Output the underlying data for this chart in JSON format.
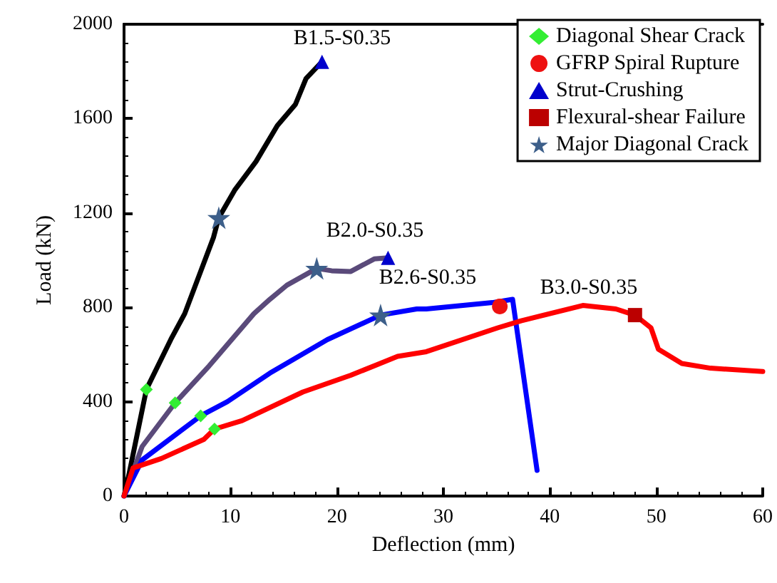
{
  "chart_data": {
    "type": "line",
    "xlabel": "Deflection (mm)",
    "ylabel": "Load (kN)",
    "xlim": [
      0,
      60
    ],
    "xticks": [
      0,
      10,
      20,
      30,
      40,
      50,
      60
    ],
    "ylim": [
      0,
      2000
    ],
    "yticks": [
      0,
      400,
      800,
      1200,
      1600,
      2000
    ],
    "grid": false,
    "legend": "top right",
    "line_style": "solid",
    "marker": "none",
    "series": [
      {
        "color": "#000000",
        "x": [
          0,
          0.5,
          2.1,
          4.4,
          5.7,
          8.4,
          8.9,
          10.4,
          12.4,
          14.4,
          16.1,
          17.1,
          18.6
        ],
        "values": [
          0,
          100,
          452,
          664,
          773,
          1096,
          1180,
          1297,
          1418,
          1570,
          1660,
          1770,
          1841
        ]
      },
      {
        "color": "#5a4a7a",
        "x": [
          0,
          1.7,
          4.8,
          8,
          12.2,
          13.7,
          15.3,
          18.1,
          19.5,
          21.3,
          23.5,
          24.8
        ],
        "values": [
          0,
          210,
          395,
          552,
          773,
          834,
          894,
          965,
          955,
          952,
          1005,
          1010
        ]
      },
      {
        "color": "#0000ff",
        "x": [
          0,
          1.7,
          7.2,
          9.7,
          13.7,
          19.1,
          24.1,
          27.5,
          28.4,
          34.6,
          36.5,
          38.8
        ],
        "values": [
          0,
          153,
          340,
          400,
          521,
          663,
          767,
          793,
          793,
          820,
          834,
          109
        ]
      },
      {
        "color": "#ff0000",
        "x": [
          0,
          0.85,
          3.5,
          7.5,
          8.5,
          11.1,
          16.8,
          21.3,
          25.7,
          28.4,
          35.1,
          37.3,
          43.1,
          46.2,
          48,
          49.5,
          50.2,
          52.4,
          55.1,
          60
        ],
        "values": [
          0,
          119,
          159,
          240,
          284,
          320,
          441,
          512,
          592,
          612,
          713,
          743,
          808,
          793,
          767,
          713,
          622,
          562,
          542,
          528
        ]
      },
      {
        "type": "scatter",
        "name": "Diagonal Shear Crack",
        "marker": "diamond",
        "color": "#33ee33",
        "x": [
          2.1,
          4.8,
          7.2,
          8.5
        ],
        "values": [
          452,
          395,
          340,
          284
        ]
      },
      {
        "type": "scatter",
        "name": "GFRP Spiral Rupture",
        "marker": "circle",
        "color": "#ee1111",
        "x": [
          35.3
        ],
        "values": [
          804
        ]
      },
      {
        "type": "scatter",
        "name": "Strut-Crushing",
        "marker": "triangle",
        "color": "#0000cc",
        "x": [
          18.6,
          24.8
        ],
        "values": [
          1841,
          1010
        ]
      },
      {
        "type": "scatter",
        "name": "Flexural-shear Failure",
        "marker": "square",
        "color": "#bb0000",
        "x": [
          48
        ],
        "values": [
          767
        ]
      },
      {
        "type": "scatter",
        "name": "Major Diagonal Crack",
        "marker": "star",
        "color": "#3d5f8a",
        "x": [
          8.9,
          18.1,
          24.1
        ],
        "values": [
          1180,
          965,
          767
        ]
      }
    ],
    "annotations": [
      "B1.5-S0.35",
      "B2.0-S0.35",
      "B2.6-S0.35",
      "B3.0-S0.35"
    ]
  }
}
